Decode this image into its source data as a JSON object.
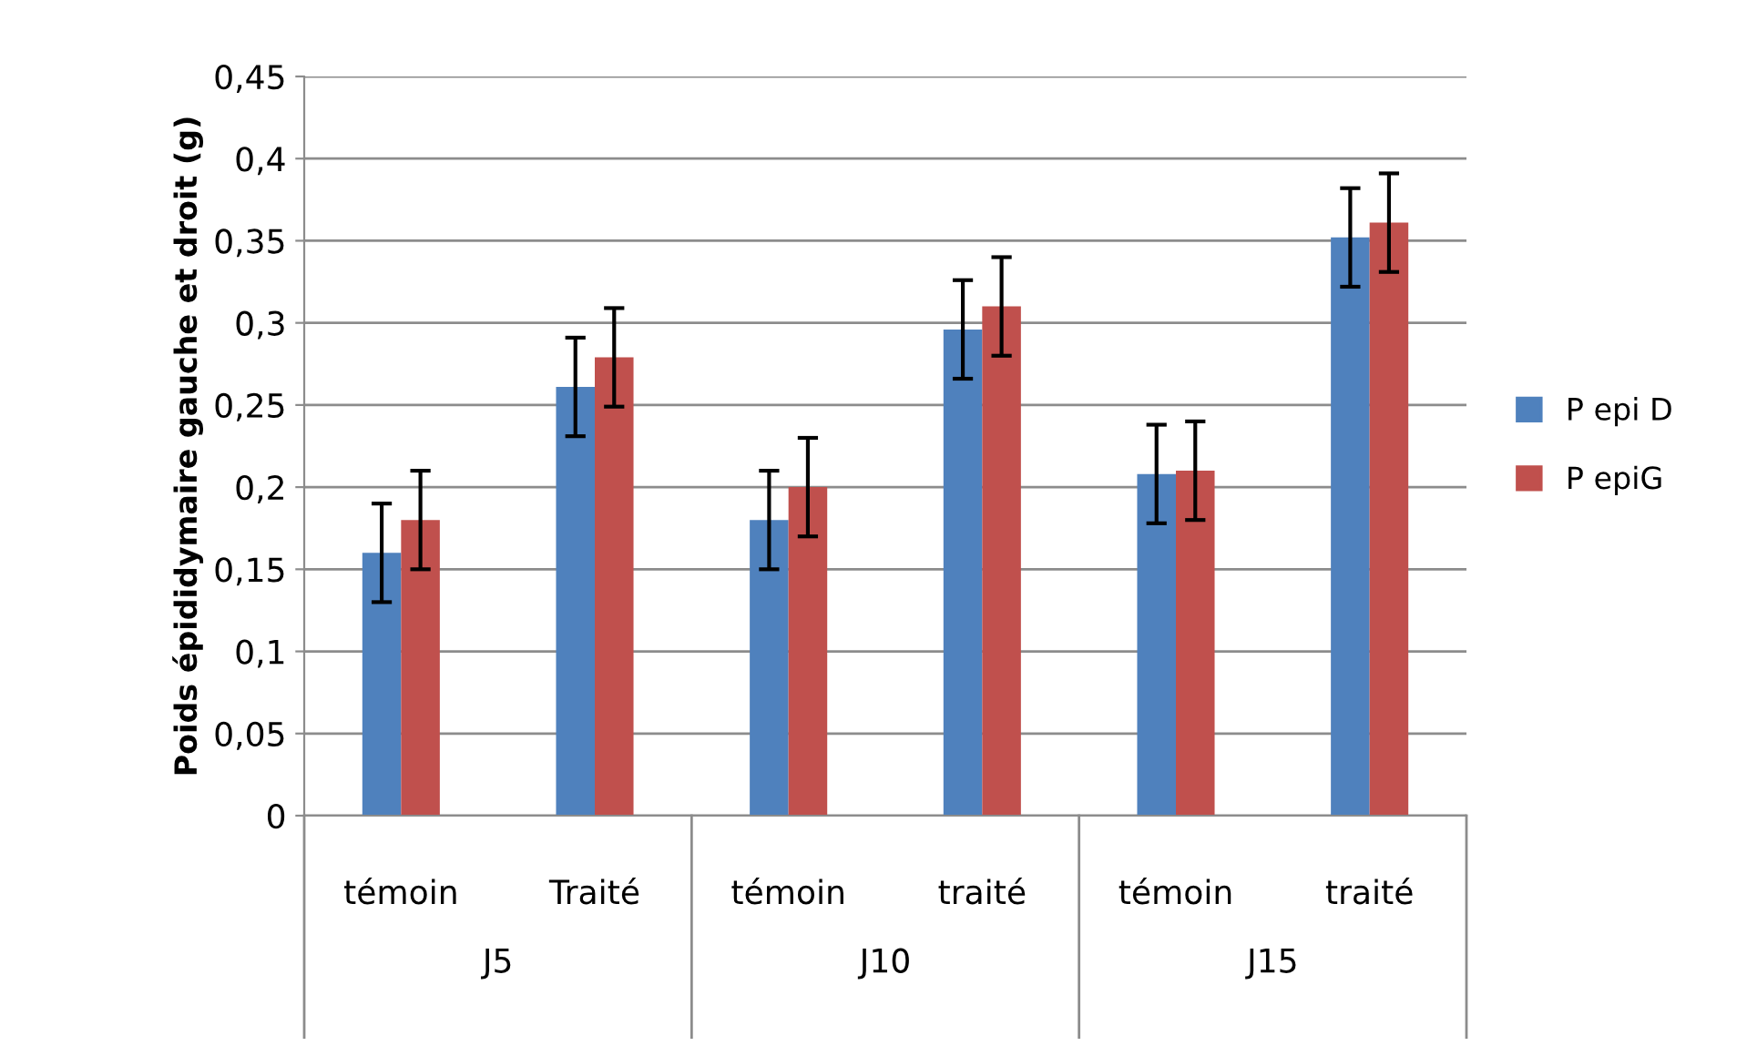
{
  "chart_data": {
    "type": "bar",
    "ylabel": "Poids épididymaire gauche et droit (g)",
    "categories": [
      "témoin",
      "Traité",
      "témoin",
      "traité",
      "témoin",
      "traité"
    ],
    "series": [
      {
        "name": "P epi D",
        "color": "#4f81bd",
        "values": [
          0.16,
          0.261,
          0.18,
          0.296,
          0.208,
          0.352
        ],
        "errors": [
          0.03,
          0.03,
          0.03,
          0.03,
          0.03,
          0.03
        ]
      },
      {
        "name": "P epiG",
        "color": "#c0504d",
        "values": [
          0.18,
          0.279,
          0.2,
          0.31,
          0.21,
          0.361
        ],
        "errors": [
          0.03,
          0.03,
          0.03,
          0.03,
          0.03,
          0.03
        ]
      }
    ],
    "annotations": [
      "J5",
      "J10",
      "J15"
    ],
    "ylim": [
      0,
      0.45
    ],
    "yticks": [
      {
        "value": 0,
        "label": "0"
      },
      {
        "value": 0.05,
        "label": "0,05"
      },
      {
        "value": 0.1,
        "label": "0,1"
      },
      {
        "value": 0.15,
        "label": "0,15"
      },
      {
        "value": 0.2,
        "label": "0,2"
      },
      {
        "value": 0.25,
        "label": "0,25"
      },
      {
        "value": 0.3,
        "label": "0,3"
      },
      {
        "value": 0.35,
        "label": "0,35"
      },
      {
        "value": 0.4,
        "label": "0,4"
      },
      {
        "value": 0.45,
        "label": "0,45"
      }
    ],
    "grid": "y",
    "legend": "right"
  }
}
